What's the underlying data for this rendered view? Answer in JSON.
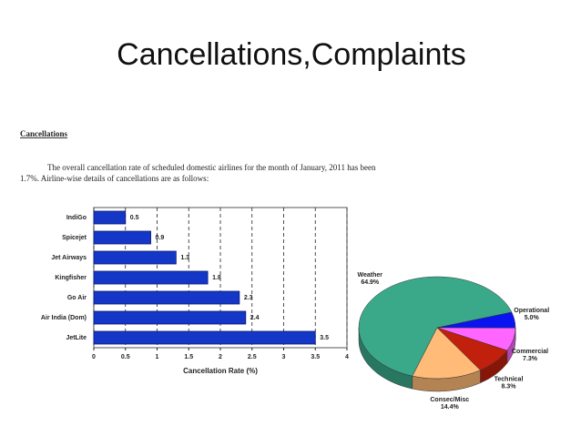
{
  "slide": {
    "title": "Cancellations,Complaints",
    "heading": "Cancellations",
    "paragraph_lines": [
      "The overall cancellation rate of scheduled domestic airlines for the month of January, 2011 has been",
      "1.7%. Airline-wise details of cancellations are as follows:"
    ]
  },
  "chart_data": [
    {
      "type": "hbar",
      "categories": [
        "IndiGo",
        "Spicejet",
        "Jet Airways",
        "Kingfisher",
        "Go Air",
        "Air India (Dom)",
        "JetLite"
      ],
      "values": [
        0.5,
        0.9,
        1.3,
        1.8,
        2.3,
        2.4,
        3.5
      ],
      "color": "#1537c8",
      "x_label": "Cancellation Rate (%)",
      "xlim": [
        0,
        4
      ],
      "xticks": [
        0,
        0.5,
        1,
        1.5,
        2,
        2.5,
        3,
        3.5,
        4
      ],
      "grid": true
    },
    {
      "type": "pie",
      "categories": [
        "Weather",
        "Operational",
        "Commercial",
        "Technical",
        "Consec/Misc"
      ],
      "values": [
        64.9,
        5.0,
        7.3,
        8.3,
        14.4
      ],
      "value_labels": [
        "64.9%",
        "5.0%",
        "7.3%",
        "8.3%",
        "14.4%"
      ],
      "colors": [
        "#3aa98a",
        "#0a14f0",
        "#ff66ff",
        "#c0200c",
        "#ffbb77"
      ]
    }
  ]
}
